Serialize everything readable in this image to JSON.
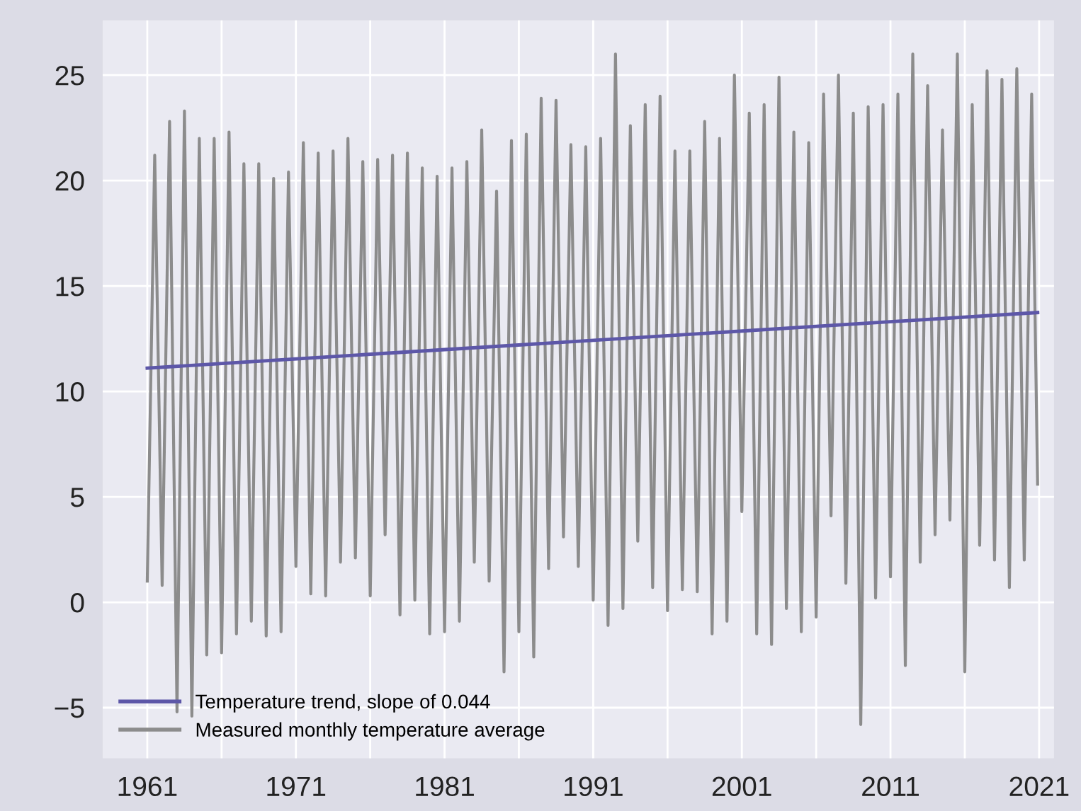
{
  "chart_data": {
    "type": "line",
    "xlim": [
      1958,
      2022
    ],
    "xticks": [
      1961,
      {
        "value": 1966,
        "label": null
      },
      1971,
      {
        "value": 1976,
        "label": null
      },
      1981,
      {
        "value": 1986,
        "label": null
      },
      1991,
      {
        "value": 1996,
        "label": null
      },
      2001,
      {
        "value": 2006,
        "label": null
      },
      2011,
      {
        "value": 2016,
        "label": null
      },
      2021
    ],
    "ylim": [
      -7.4,
      27.6
    ],
    "yticks": [
      {
        "value": -5,
        "label": "−5"
      },
      0,
      5,
      10,
      15,
      20,
      25
    ],
    "grid": true,
    "legend": "bottom left",
    "line_style": "solid",
    "marker": "none",
    "series": [
      {
        "name": "Temperature trend, slope of 0.044",
        "color": "#5d57a8",
        "x": [
          1961,
          2020.9
        ],
        "values": [
          11.1,
          13.74
        ]
      },
      {
        "name": "Measured monthly temperature average",
        "color": "#8c8c8c",
        "x": [
          1961,
          1961.5,
          1962,
          1962.5,
          1963,
          1963.5,
          1964,
          1964.5,
          1965,
          1965.5,
          1966,
          1966.5,
          1967,
          1967.5,
          1968,
          1968.5,
          1969,
          1969.5,
          1970,
          1970.5,
          1971,
          1971.5,
          1972,
          1972.5,
          1973,
          1973.5,
          1974,
          1974.5,
          1975,
          1975.5,
          1976,
          1976.5,
          1977,
          1977.5,
          1978,
          1978.5,
          1979,
          1979.5,
          1980,
          1980.5,
          1981,
          1981.5,
          1982,
          1982.5,
          1983,
          1983.5,
          1984,
          1984.5,
          1985,
          1985.5,
          1986,
          1986.5,
          1987,
          1987.5,
          1988,
          1988.5,
          1989,
          1989.5,
          1990,
          1990.5,
          1991,
          1991.5,
          1992,
          1992.5,
          1993,
          1993.5,
          1994,
          1994.5,
          1995,
          1995.5,
          1996,
          1996.5,
          1997,
          1997.5,
          1998,
          1998.5,
          1999,
          1999.5,
          2000,
          2000.5,
          2001,
          2001.5,
          2002,
          2002.5,
          2003,
          2003.5,
          2004,
          2004.5,
          2005,
          2005.5,
          2006,
          2006.5,
          2007,
          2007.5,
          2008,
          2008.5,
          2009,
          2009.5,
          2010,
          2010.5,
          2011,
          2011.5,
          2012,
          2012.5,
          2013,
          2013.5,
          2014,
          2014.5,
          2015,
          2015.5,
          2016,
          2016.5,
          2017,
          2017.5,
          2018,
          2018.5,
          2019,
          2019.5,
          2020,
          2020.5,
          2020.9
        ],
        "values": [
          1.0,
          21.2,
          0.8,
          22.8,
          -5.2,
          23.3,
          -5.4,
          22.0,
          -2.5,
          22.0,
          -2.4,
          22.3,
          -1.5,
          20.8,
          -0.9,
          20.8,
          -1.6,
          20.1,
          -1.4,
          20.4,
          1.7,
          21.8,
          0.4,
          21.3,
          0.3,
          21.4,
          1.9,
          22.0,
          2.1,
          20.9,
          0.3,
          21.0,
          3.2,
          21.2,
          -0.6,
          21.3,
          0.1,
          20.6,
          -1.5,
          20.2,
          -1.4,
          20.6,
          -0.9,
          20.9,
          1.9,
          22.4,
          1.0,
          19.5,
          -3.3,
          21.9,
          -1.4,
          22.2,
          -2.6,
          23.9,
          1.6,
          23.8,
          3.1,
          21.7,
          1.7,
          21.6,
          0.1,
          22.0,
          -1.1,
          26.0,
          -0.3,
          22.6,
          2.9,
          23.6,
          0.7,
          24.0,
          -0.4,
          21.4,
          0.6,
          21.4,
          0.5,
          22.8,
          -1.5,
          22.0,
          -0.9,
          25.0,
          4.3,
          23.2,
          -1.5,
          23.6,
          -2.0,
          24.9,
          -0.3,
          22.3,
          -1.4,
          21.8,
          -0.7,
          24.1,
          4.1,
          25.0,
          0.9,
          23.2,
          -5.8,
          23.5,
          0.2,
          23.6,
          1.2,
          24.1,
          -3.0,
          26.0,
          1.9,
          24.5,
          3.2,
          22.4,
          3.9,
          26.0,
          -3.3,
          23.6,
          2.7,
          25.2,
          2.0,
          24.8,
          0.7,
          25.3,
          2.0,
          24.1,
          5.6
        ]
      }
    ]
  }
}
